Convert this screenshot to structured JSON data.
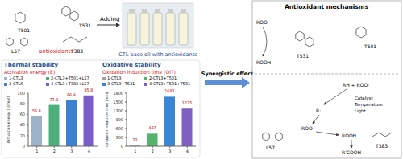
{
  "diagram": {
    "antioxidants": {
      "title": "antioxidants",
      "names": [
        "T501",
        "T531",
        "L57",
        "T383"
      ]
    },
    "arrow_label": "Adding",
    "product": "CTL base oil with antioxidants",
    "link": "Synergistic effect",
    "mechanisms": {
      "title": "Antioxidant mechanisms",
      "radical": "ROO·",
      "hydroperoxide": "ROOH",
      "chain_breakers": [
        "T501",
        "T531"
      ],
      "initiation": "RH + ROO·",
      "conditions": [
        "Catalyst",
        "Temperature",
        "Light"
      ],
      "alkyl_radical": "R·",
      "peroxide_radical": "ROO·",
      "decomposers": [
        "L57",
        "T383"
      ],
      "end_product": "R'COOH"
    }
  },
  "chart_data": [
    {
      "type": "bar",
      "title": "Thermal stability",
      "annotation": "Activation energy (E)",
      "y_label": "Activation energy (kJ/mol)",
      "categories": [
        "1",
        "2",
        "3",
        "4"
      ],
      "labels": [
        "1-CTL3",
        "2-CTL3+T501+L57",
        "3-CTL6",
        "4-CTL3+T383+L57"
      ],
      "values": [
        56.4,
        77.9,
        86.4,
        95.8
      ],
      "colors": [
        "#9fb3c8",
        "#4daf7c",
        "#3d7fd1",
        "#7a5bc8"
      ],
      "ylim": [
        0,
        100
      ],
      "yticks": [
        0,
        20,
        40,
        60,
        80,
        100
      ],
      "data_labels": true,
      "grid": false
    },
    {
      "type": "bar",
      "title": "Oxidative stability",
      "annotation": "Oxidation induction time (OIT)",
      "y_label": "Oxidation induction time (min)",
      "categories": [
        "1",
        "2",
        "3",
        "4"
      ],
      "labels": [
        "1-CTL3",
        "2-CTL3+T501",
        "3-CTL3+T531",
        "4-CTL3+T501+T531"
      ],
      "values": [
        22,
        427,
        1681,
        1275
      ],
      "colors": [
        "#a0a0a0",
        "#55b36b",
        "#3c86d6",
        "#7e5fc4"
      ],
      "ylim": [
        0,
        1800
      ],
      "yticks": [
        0,
        300,
        600,
        900,
        1200,
        1500,
        1800
      ],
      "data_labels": true,
      "grid": false
    }
  ]
}
